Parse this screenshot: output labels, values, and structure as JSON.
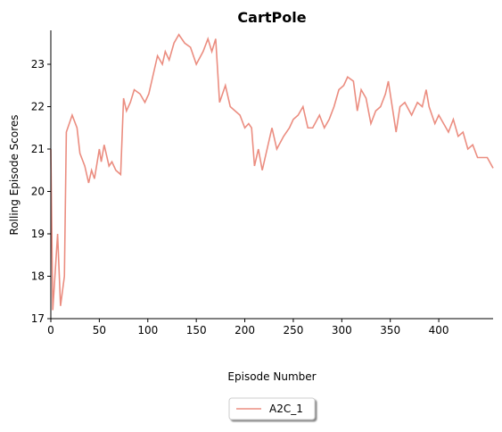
{
  "chart_data": {
    "type": "line",
    "title": "CartPole",
    "xlabel": "Episode Number",
    "ylabel": "Rolling Episode Scores",
    "x": [
      0,
      2,
      7,
      10,
      14,
      16,
      22,
      27,
      30,
      35,
      39,
      42,
      45,
      50,
      52,
      55,
      60,
      63,
      67,
      72,
      75,
      78,
      82,
      86,
      92,
      97,
      101,
      106,
      110,
      115,
      118,
      122,
      127,
      132,
      138,
      144,
      150,
      157,
      162,
      166,
      170,
      174,
      180,
      185,
      190,
      195,
      200,
      204,
      207,
      210,
      214,
      218,
      222,
      228,
      233,
      240,
      246,
      250,
      255,
      260,
      265,
      270,
      277,
      282,
      287,
      292,
      297,
      302,
      306,
      312,
      316,
      320,
      325,
      330,
      335,
      340,
      345,
      348,
      352,
      356,
      360,
      365,
      372,
      378,
      383,
      387,
      390,
      396,
      400,
      405,
      410,
      415,
      420,
      425,
      430,
      435,
      440,
      450,
      456
    ],
    "series": [
      {
        "name": "A2C_1",
        "color": "#eb8d80",
        "values": [
          21,
          17.2,
          19,
          17.3,
          18,
          21.4,
          21.8,
          21.5,
          20.9,
          20.6,
          20.2,
          20.5,
          20.3,
          21,
          20.7,
          21.1,
          20.6,
          20.7,
          20.5,
          20.4,
          22.2,
          21.9,
          22.1,
          22.4,
          22.3,
          22.1,
          22.3,
          22.8,
          23.2,
          23,
          23.3,
          23.1,
          23.5,
          23.7,
          23.5,
          23.4,
          23,
          23.3,
          23.6,
          23.3,
          23.6,
          22.1,
          22.5,
          22,
          21.9,
          21.8,
          21.5,
          21.6,
          21.5,
          20.6,
          21,
          20.5,
          20.9,
          21.5,
          21,
          21.3,
          21.5,
          21.7,
          21.8,
          22,
          21.5,
          21.5,
          21.8,
          21.5,
          21.7,
          22,
          22.4,
          22.5,
          22.7,
          22.6,
          21.9,
          22.4,
          22.2,
          21.6,
          21.9,
          22,
          22.3,
          22.6,
          22,
          21.4,
          22,
          22.1,
          21.8,
          22.1,
          22,
          22.4,
          22,
          21.6,
          21.8,
          21.6,
          21.4,
          21.7,
          21.3,
          21.4,
          21,
          21.1,
          20.8,
          20.8,
          20.55
        ]
      }
    ],
    "xlim": [
      0,
      456
    ],
    "ylim": [
      17,
      23.8
    ],
    "xticks": [
      0,
      50,
      100,
      150,
      200,
      250,
      300,
      350,
      400
    ],
    "yticks": [
      17,
      18,
      19,
      20,
      21,
      22,
      23
    ],
    "legend": "below"
  }
}
